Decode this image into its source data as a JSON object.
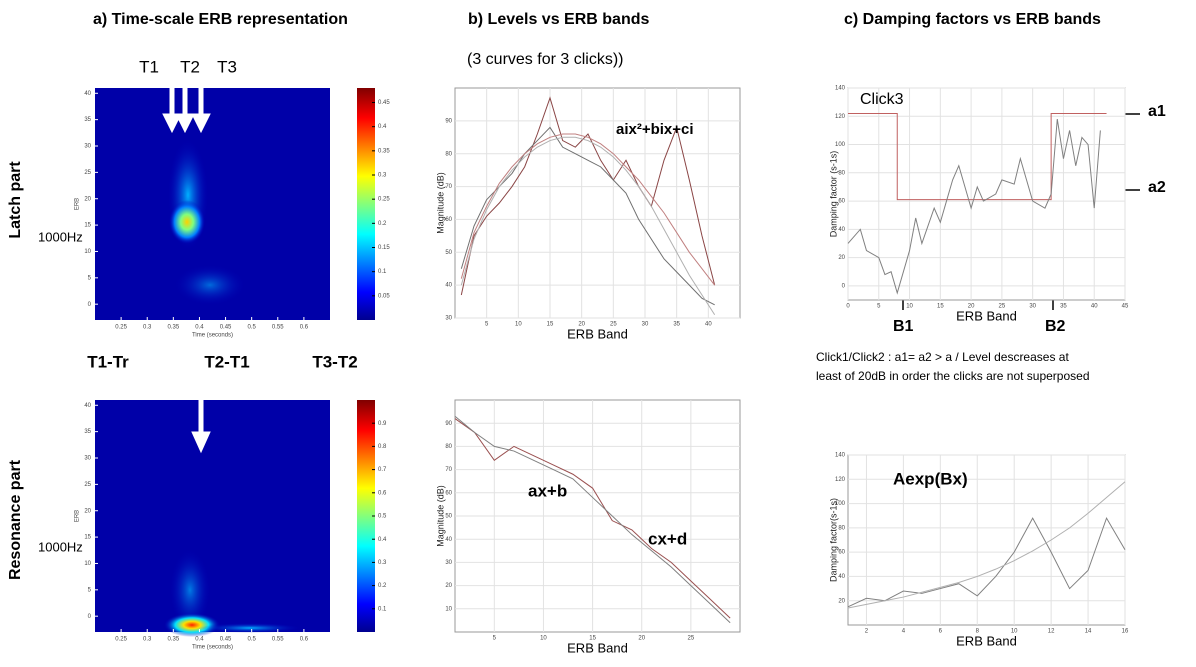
{
  "headings": [
    "a) Time-scale ERB representation",
    "b) Levels vs ERB bands",
    "c) Damping factors vs ERB bands"
  ],
  "subtitle": "(3 curves for 3 clicks))",
  "spectrograms": [
    {
      "row_label": "Latch part",
      "freq_label": "1000Hz",
      "time_marks": [
        "T1",
        "T2",
        "T3"
      ],
      "x_label": "Time (seconds)",
      "y_label": "ERB",
      "xlim": [
        0.2,
        0.65
      ],
      "xticks": [
        0.25,
        0.3,
        0.35,
        0.4,
        0.45,
        0.5,
        0.55,
        0.6
      ],
      "ylim": [
        -3,
        41
      ],
      "yticks": [
        0,
        5,
        10,
        15,
        20,
        25,
        30,
        35,
        40
      ],
      "clim": [
        0,
        0.48
      ],
      "cticks": [
        0.05,
        0.1,
        0.15,
        0.2,
        0.25,
        0.3,
        0.35,
        0.4,
        0.45
      ]
    },
    {
      "row_label": "Resonance part",
      "freq_label": "1000Hz",
      "time_marks": [
        "T1-Tr",
        "T2-T1",
        "T3-T2"
      ],
      "x_label": "Time (seconds)",
      "y_label": "ERB",
      "xlim": [
        0.2,
        0.65
      ],
      "xticks": [
        0.25,
        0.3,
        0.35,
        0.4,
        0.45,
        0.5,
        0.55,
        0.6
      ],
      "ylim": [
        -3,
        41
      ],
      "yticks": [
        0,
        5,
        10,
        15,
        20,
        25,
        30,
        35,
        40
      ],
      "clim": [
        0,
        1
      ],
      "cticks": [
        0.1,
        0.2,
        0.3,
        0.4,
        0.5,
        0.6,
        0.7,
        0.8,
        0.9
      ]
    }
  ],
  "plots": [
    {
      "type": "line",
      "x_label": "ERB Band",
      "y_label": "Magnitude (dB)",
      "annotations": [
        "aix²+bix+ci"
      ],
      "xlim": [
        0,
        45
      ],
      "ylim": [
        30,
        100
      ],
      "xticks": [
        5,
        10,
        15,
        20,
        25,
        30,
        35,
        40
      ],
      "yticks": [
        30,
        40,
        50,
        60,
        70,
        80,
        90
      ],
      "grid": true,
      "x": [
        1,
        3,
        5,
        7,
        9,
        11,
        13,
        15,
        17,
        19,
        21,
        23,
        25,
        27,
        29,
        31,
        33,
        35,
        37,
        39,
        41
      ],
      "series": [
        {
          "color": "#8a4545",
          "values": [
            37,
            55,
            61,
            65,
            70,
            76,
            86,
            97,
            84,
            82,
            86,
            78,
            72,
            78,
            70,
            64,
            78,
            88,
            72,
            55,
            40
          ]
        },
        {
          "color": "#707070",
          "values": [
            45,
            58,
            66,
            70,
            74,
            80,
            84,
            88,
            82,
            80,
            78,
            76,
            72,
            68,
            60,
            54,
            48,
            44,
            40,
            36,
            34
          ]
        },
        {
          "color": "#b0b0b0",
          "values": [
            40,
            54,
            63,
            70,
            75,
            79,
            82,
            84,
            85,
            85,
            84,
            82,
            79,
            75,
            70,
            64,
            57,
            50,
            43,
            37,
            31
          ]
        },
        {
          "color": "#c08080",
          "values": [
            42,
            56,
            64,
            71,
            76,
            80,
            83,
            85,
            86,
            86,
            85,
            83,
            80,
            76,
            72,
            67,
            62,
            56,
            50,
            45,
            40
          ]
        }
      ]
    },
    {
      "type": "line",
      "x_label": "ERB Band",
      "y_label": "Magnitude (dB)",
      "annotations": [
        "ax+b",
        "cx+d"
      ],
      "xlim": [
        1,
        30
      ],
      "ylim": [
        0,
        100
      ],
      "xticks": [
        5,
        10,
        15,
        20,
        25
      ],
      "yticks": [
        10,
        20,
        30,
        40,
        50,
        60,
        70,
        80,
        90
      ],
      "grid": true,
      "x": [
        1,
        3,
        5,
        7,
        9,
        11,
        13,
        15,
        17,
        19,
        21,
        23,
        25,
        27,
        29
      ],
      "series": [
        {
          "color": "#9a5050",
          "values": [
            92,
            86,
            74,
            80,
            76,
            72,
            68,
            62,
            48,
            44,
            36,
            30,
            22,
            14,
            6
          ]
        },
        {
          "color": "#808080",
          "values": [
            93,
            86,
            80,
            78,
            74,
            70,
            66,
            58,
            50,
            42,
            35,
            28,
            20,
            12,
            4
          ]
        }
      ]
    },
    {
      "type": "line",
      "title": "Click3",
      "x_label": "ERB Band",
      "y_label": "Damping factor (s-1s)",
      "annotations": [
        "a1",
        "a2",
        "B1",
        "B2"
      ],
      "xlim": [
        0,
        45
      ],
      "ylim": [
        -10,
        140
      ],
      "xticks": [
        0,
        5,
        10,
        15,
        20,
        25,
        30,
        35,
        40,
        45
      ],
      "yticks": [
        0,
        20,
        40,
        60,
        80,
        100,
        120,
        140
      ],
      "grid": true,
      "series": [
        {
          "color": "#c06060",
          "x": [
            0,
            8,
            8,
            33,
            33,
            42
          ],
          "values": [
            122,
            122,
            61,
            61,
            122,
            122
          ]
        },
        {
          "color": "#808080",
          "x": [
            0,
            2,
            3,
            5,
            6,
            7,
            8,
            10,
            11,
            12,
            14,
            15,
            16,
            17,
            18,
            20,
            21,
            22,
            24,
            25,
            27,
            28,
            30,
            32,
            33,
            34,
            35,
            36,
            37,
            38,
            39,
            40,
            41
          ],
          "values": [
            30,
            40,
            25,
            20,
            8,
            10,
            -5,
            25,
            48,
            30,
            55,
            45,
            60,
            75,
            85,
            55,
            70,
            60,
            65,
            75,
            72,
            90,
            60,
            55,
            65,
            118,
            90,
            110,
            85,
            105,
            100,
            55,
            110
          ]
        }
      ]
    },
    {
      "type": "line",
      "x_label": "ERB Band",
      "y_label": "Damping factor(s-1s)",
      "annotations": [
        "Aexp(Bx)"
      ],
      "xlim": [
        1,
        16
      ],
      "ylim": [
        0,
        140
      ],
      "xticks": [
        2,
        4,
        6,
        8,
        10,
        12,
        14,
        16
      ],
      "yticks": [
        20,
        40,
        60,
        80,
        100,
        120,
        140
      ],
      "grid": true,
      "x": [
        1,
        2,
        3,
        4,
        5,
        6,
        7,
        8,
        9,
        10,
        11,
        12,
        13,
        14,
        15,
        16
      ],
      "series": [
        {
          "color": "#808080",
          "values": [
            15,
            22,
            20,
            28,
            26,
            30,
            34,
            24,
            40,
            60,
            88,
            60,
            30,
            45,
            88,
            62
          ]
        },
        {
          "color": "#b0b0b0",
          "values": [
            14,
            17,
            20,
            23,
            27,
            31,
            35,
            40,
            46,
            53,
            61,
            70,
            80,
            92,
            105,
            118
          ]
        }
      ]
    }
  ],
  "notes": [
    "Click1/Click2 : a1= a2  > a / Level descreases at",
    "least of 20dB in order the clicks are not superposed"
  ]
}
